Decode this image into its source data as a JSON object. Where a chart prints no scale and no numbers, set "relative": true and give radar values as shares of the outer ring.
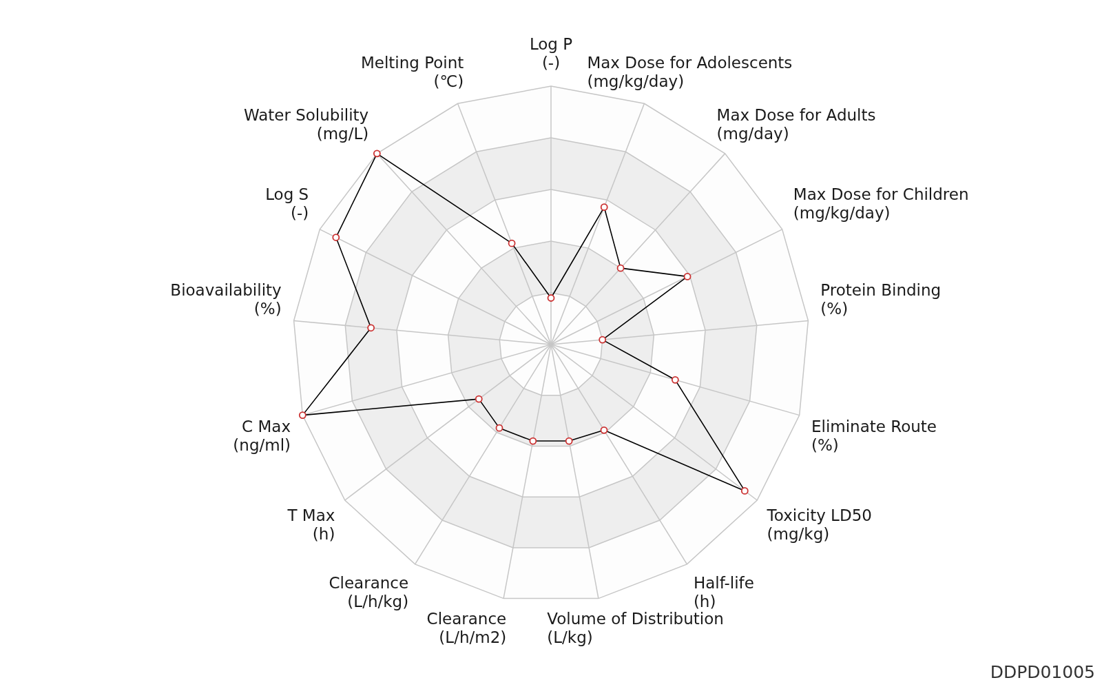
{
  "chart_data": {
    "type": "radar",
    "relative": true,
    "grid": true,
    "marker": "circle",
    "categories": [
      "Log P\n(-)",
      "Max Dose for Adolescents\n(mg/kg/day)",
      "Max Dose for Adults\n(mg/day)",
      "Max Dose for Children\n(mg/kg/day)",
      "Protein Binding\n(%)",
      "Eliminate Route\n(%)",
      "Toxicity LD50\n(mg/kg)",
      "Half-life\n(h)",
      "Volume of Distribution\n(L/kg)",
      "Clearance\n(L/h/m2)",
      "Clearance\n(L/h/kg)",
      "T Max\n(h)",
      "C Max\n(ng/ml)",
      "Bioavailability\n(%)",
      "Log S\n(-)",
      "Water Solubility\n(mg/L)",
      "Melting Point\n(℃)"
    ],
    "series": [
      {
        "color": "#000000",
        "colors": [
          "#cc3333",
          "#cc3333",
          "#cc3333",
          "#cc3333",
          "#cc3333",
          "#cc3333",
          "#cc3333",
          "#cc3333",
          "#cc3333",
          "#cc3333",
          "#cc3333",
          "#cc3333",
          "#cc3333",
          "#cc3333",
          "#cc3333",
          "#cc3333",
          "#cc3333"
        ],
        "values": [
          0.18,
          0.57,
          0.4,
          0.59,
          0.2,
          0.5,
          0.94,
          0.39,
          0.38,
          0.38,
          0.38,
          0.35,
          1.0,
          0.7,
          0.93,
          1.0,
          0.42
        ]
      }
    ],
    "annotations": [
      "DDPD01005"
    ]
  }
}
